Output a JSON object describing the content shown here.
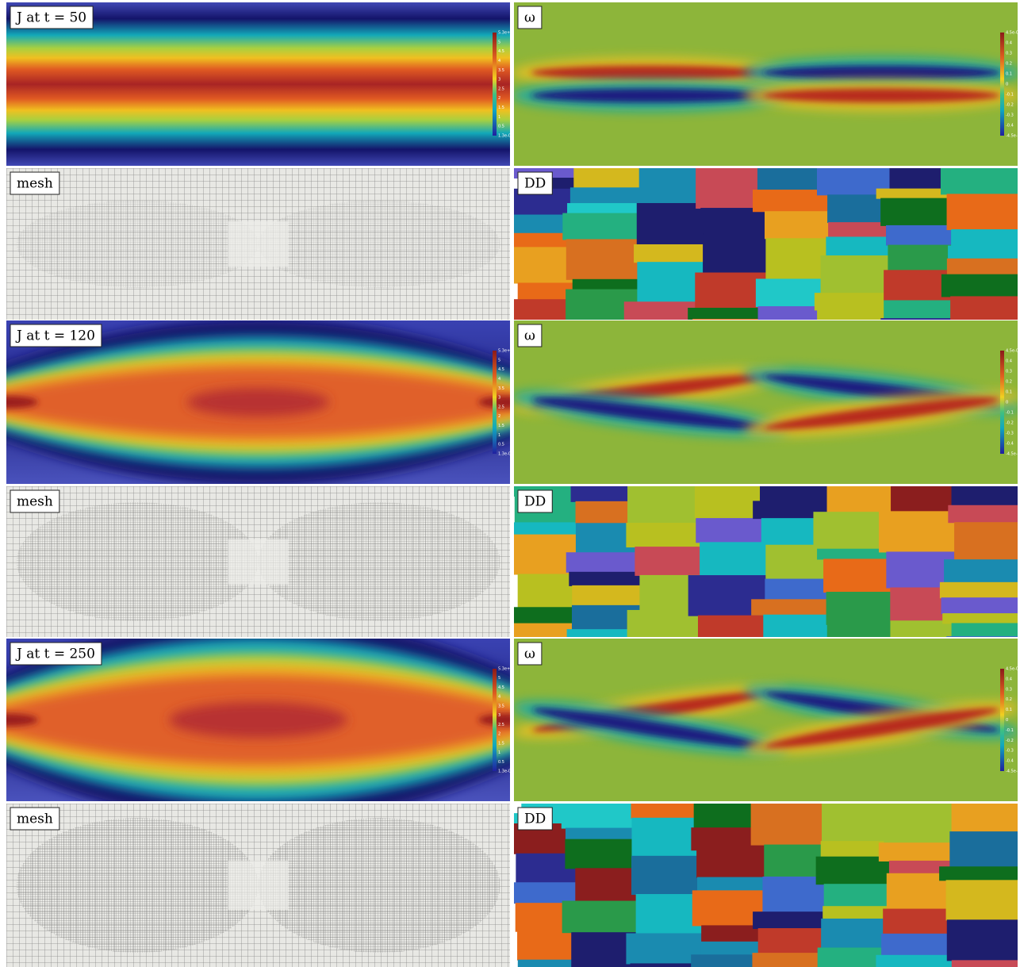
{
  "snapshots": [
    {
      "J_label": "J at t = 50",
      "omega_label": "ω",
      "mesh_label": "mesh",
      "DD_label": "DD"
    },
    {
      "J_label": "J at t = 120",
      "omega_label": "ω",
      "mesh_label": "mesh",
      "DD_label": "DD"
    },
    {
      "J_label": "J at t = 250",
      "omega_label": "ω",
      "mesh_label": "mesh",
      "DD_label": "DD"
    }
  ],
  "J_colorbar": [
    "5.3e+00",
    "5",
    "4.5",
    "4",
    "3.5",
    "3",
    "2.5",
    "2",
    "1.5",
    "1",
    "0.5",
    "1.3e-05"
  ],
  "omega_colorbar": [
    "4.5e-01",
    "0.4",
    "0.3",
    "0.2",
    "0.1",
    "0",
    "-0.1",
    "-0.2",
    "-0.3",
    "-0.4",
    "-4.5e-01"
  ]
}
